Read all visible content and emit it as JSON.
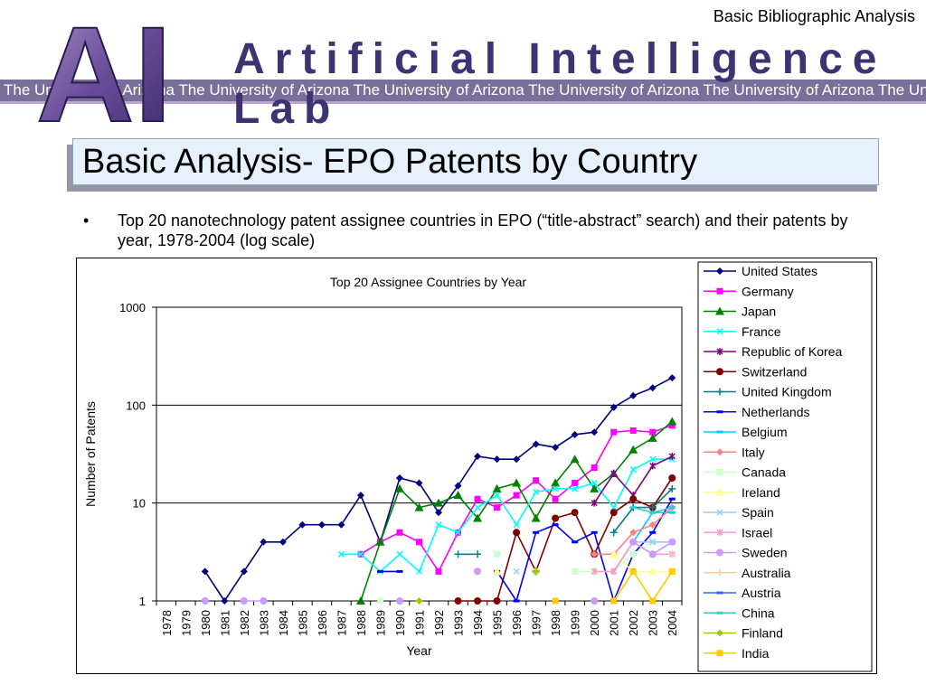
{
  "header": {
    "top_label": "Basic Bibliographic Analysis",
    "lab_name": "Artificial Intelligence Lab",
    "logo_text": "AI",
    "university_band": "The University of Arizona  The University of Arizona  The University of Arizona  The University of Arizona  The University of Arizona  The University"
  },
  "slide": {
    "title": "Basic Analysis- EPO Patents by Country",
    "bullet": "Top 20 nanotechnology patent assignee countries in EPO (“title-abstract” search) and their patents by year, 1978-2004 (log scale)"
  },
  "chart_data": {
    "type": "line",
    "title": "Top 20 Assignee Countries by Year",
    "xlabel": "Year",
    "ylabel": "Number of Patents",
    "y_scale": "log",
    "ylim": [
      1,
      1000
    ],
    "yticks": [
      "1",
      "10",
      "100",
      "1000"
    ],
    "grid": true,
    "legend_position": "right",
    "x": [
      "1978",
      "1979",
      "1980",
      "1981",
      "1982",
      "1983",
      "1984",
      "1985",
      "1986",
      "1987",
      "1988",
      "1989",
      "1990",
      "1991",
      "1992",
      "1993",
      "1994",
      "1995",
      "1996",
      "1997",
      "1998",
      "1999",
      "2000",
      "2001",
      "2002",
      "2003",
      "2004"
    ],
    "series": [
      {
        "name": "United States",
        "color": "#000080",
        "marker": "diamond",
        "values": [
          null,
          null,
          2,
          1,
          2,
          4,
          4,
          6,
          6,
          6,
          12,
          4,
          18,
          16,
          8,
          15,
          30,
          28,
          28,
          40,
          37,
          50,
          53,
          95,
          125,
          150,
          190
        ]
      },
      {
        "name": "Germany",
        "color": "#ff00ff",
        "marker": "square",
        "values": [
          null,
          null,
          null,
          null,
          null,
          null,
          null,
          null,
          null,
          null,
          3,
          4,
          5,
          4,
          2,
          5,
          11,
          9,
          12,
          17,
          11,
          16,
          23,
          53,
          55,
          53,
          62
        ]
      },
      {
        "name": "Japan",
        "color": "#008000",
        "marker": "triangle",
        "values": [
          null,
          null,
          null,
          null,
          null,
          null,
          null,
          null,
          null,
          null,
          1,
          4,
          14,
          9,
          10,
          12,
          7,
          14,
          16,
          7,
          16,
          28,
          14,
          20,
          35,
          46,
          68
        ]
      },
      {
        "name": "France",
        "color": "#00ffff",
        "marker": "x",
        "values": [
          null,
          null,
          null,
          null,
          null,
          null,
          null,
          null,
          null,
          3,
          3,
          2,
          3,
          2,
          6,
          5,
          9,
          12,
          6,
          13,
          14,
          14,
          16,
          9,
          22,
          28,
          28
        ]
      },
      {
        "name": "Republic of Korea",
        "color": "#800080",
        "marker": "star",
        "values": [
          null,
          null,
          null,
          null,
          null,
          null,
          null,
          null,
          null,
          null,
          null,
          null,
          null,
          null,
          null,
          null,
          null,
          null,
          null,
          null,
          null,
          null,
          10,
          20,
          12,
          24,
          30
        ]
      },
      {
        "name": "Switzerland",
        "color": "#800000",
        "marker": "circle",
        "values": [
          null,
          null,
          null,
          null,
          null,
          null,
          null,
          null,
          null,
          null,
          null,
          null,
          null,
          null,
          null,
          1,
          1,
          1,
          5,
          2,
          7,
          8,
          3,
          8,
          11,
          9,
          18
        ]
      },
      {
        "name": "United Kingdom",
        "color": "#008080",
        "marker": "plus",
        "values": [
          null,
          null,
          null,
          null,
          null,
          null,
          null,
          null,
          null,
          null,
          null,
          null,
          null,
          null,
          null,
          3,
          3,
          null,
          null,
          null,
          null,
          null,
          null,
          5,
          9,
          9,
          14
        ]
      },
      {
        "name": "Netherlands",
        "color": "#0000ff",
        "marker": "dash",
        "values": [
          null,
          null,
          null,
          null,
          null,
          null,
          null,
          null,
          null,
          null,
          null,
          2,
          2,
          null,
          null,
          null,
          null,
          2,
          1,
          5,
          6,
          4,
          5,
          1,
          3,
          5,
          11
        ]
      },
      {
        "name": "Belgium",
        "color": "#00ccff",
        "marker": "dash",
        "values": [
          null,
          null,
          null,
          null,
          null,
          null,
          null,
          null,
          null,
          null,
          null,
          null,
          null,
          null,
          null,
          null,
          null,
          null,
          null,
          null,
          null,
          null,
          null,
          2,
          4,
          8,
          8
        ]
      },
      {
        "name": "Italy",
        "color": "#ff8080",
        "marker": "diamond",
        "values": [
          null,
          null,
          null,
          null,
          null,
          null,
          null,
          null,
          null,
          null,
          null,
          null,
          null,
          null,
          null,
          null,
          null,
          null,
          null,
          null,
          null,
          null,
          3,
          3,
          5,
          6,
          9
        ]
      },
      {
        "name": "Canada",
        "color": "#ccffcc",
        "marker": "square",
        "values": [
          null,
          null,
          null,
          null,
          null,
          null,
          null,
          null,
          null,
          null,
          null,
          1,
          null,
          null,
          null,
          null,
          null,
          3,
          null,
          2,
          null,
          2,
          2,
          2,
          3,
          4,
          4
        ]
      },
      {
        "name": "Ireland",
        "color": "#ffff99",
        "marker": "triangle",
        "values": [
          null,
          null,
          null,
          null,
          null,
          null,
          null,
          null,
          null,
          null,
          null,
          null,
          null,
          null,
          null,
          null,
          null,
          2,
          null,
          null,
          null,
          null,
          null,
          3,
          2,
          2,
          2
        ]
      },
      {
        "name": "Spain",
        "color": "#99ccff",
        "marker": "x",
        "values": [
          null,
          null,
          null,
          null,
          null,
          null,
          null,
          null,
          null,
          null,
          null,
          null,
          null,
          null,
          null,
          null,
          null,
          null,
          2,
          null,
          null,
          null,
          null,
          2,
          4,
          4,
          4
        ]
      },
      {
        "name": "Israel",
        "color": "#ff99cc",
        "marker": "star",
        "values": [
          null,
          null,
          null,
          null,
          null,
          null,
          null,
          null,
          null,
          null,
          null,
          null,
          null,
          null,
          null,
          null,
          null,
          null,
          null,
          null,
          null,
          null,
          2,
          2,
          4,
          3,
          3
        ]
      },
      {
        "name": "Sweden",
        "color": "#cc99ff",
        "marker": "circle",
        "values": [
          null,
          null,
          1,
          null,
          1,
          1,
          null,
          null,
          null,
          null,
          null,
          null,
          1,
          null,
          null,
          null,
          2,
          null,
          null,
          null,
          null,
          null,
          1,
          null,
          4,
          3,
          4
        ]
      },
      {
        "name": "Australia",
        "color": "#ffcc99",
        "marker": "plus",
        "values": [
          null,
          null,
          null,
          null,
          null,
          null,
          null,
          null,
          null,
          null,
          null,
          null,
          null,
          null,
          null,
          null,
          null,
          null,
          null,
          null,
          null,
          null,
          null,
          null,
          2,
          null,
          3
        ]
      },
      {
        "name": "Austria",
        "color": "#3366ff",
        "marker": "dash",
        "values": [
          null,
          null,
          null,
          null,
          null,
          null,
          null,
          null,
          null,
          null,
          null,
          null,
          null,
          null,
          null,
          null,
          null,
          null,
          null,
          null,
          null,
          null,
          null,
          null,
          null,
          null,
          null
        ]
      },
      {
        "name": "China",
        "color": "#33cccc",
        "marker": "dash",
        "values": [
          null,
          null,
          null,
          null,
          null,
          null,
          null,
          null,
          null,
          null,
          null,
          null,
          null,
          null,
          null,
          null,
          null,
          null,
          null,
          null,
          null,
          null,
          null,
          null,
          9,
          8,
          9
        ]
      },
      {
        "name": "Finland",
        "color": "#99cc00",
        "marker": "diamond",
        "values": [
          null,
          null,
          null,
          null,
          null,
          null,
          null,
          null,
          null,
          null,
          null,
          null,
          null,
          1,
          null,
          null,
          null,
          null,
          null,
          2,
          null,
          null,
          null,
          null,
          null,
          null,
          null
        ]
      },
      {
        "name": "India",
        "color": "#ffcc00",
        "marker": "square",
        "values": [
          null,
          null,
          null,
          null,
          null,
          null,
          null,
          null,
          null,
          null,
          null,
          null,
          null,
          null,
          null,
          null,
          null,
          null,
          null,
          null,
          1,
          null,
          null,
          1,
          2,
          1,
          2
        ]
      }
    ]
  }
}
